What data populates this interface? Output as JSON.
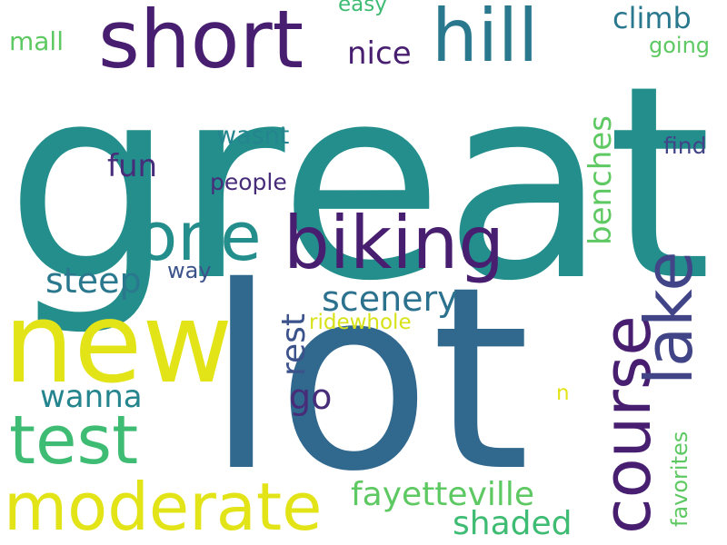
{
  "palette": {
    "dark_purple": "#481f70",
    "purple": "#472c7a",
    "blue": "#31688e",
    "teal": "#238e8c",
    "green": "#3fbc73",
    "light_green": "#5ec962",
    "yellow_green": "#addc30",
    "yellow": "#e3e418"
  },
  "words": [
    {
      "text": "great",
      "color": "#238e8c",
      "orientation": "horizontal"
    },
    {
      "text": "lot",
      "color": "#31688e",
      "orientation": "horizontal"
    },
    {
      "text": "new",
      "color": "#e3e418",
      "orientation": "horizontal"
    },
    {
      "text": "short",
      "color": "#481f70",
      "orientation": "horizontal"
    },
    {
      "text": "hill",
      "color": "#2a788e",
      "orientation": "horizontal"
    },
    {
      "text": "biking",
      "color": "#481f70",
      "orientation": "horizontal"
    },
    {
      "text": "one",
      "color": "#238e8c",
      "orientation": "horizontal"
    },
    {
      "text": "test",
      "color": "#3fbc73",
      "orientation": "horizontal"
    },
    {
      "text": "moderate",
      "color": "#e3e418",
      "orientation": "horizontal"
    },
    {
      "text": "course",
      "color": "#481f70",
      "orientation": "vertical"
    },
    {
      "text": "lake",
      "color": "#414487",
      "orientation": "vertical"
    },
    {
      "text": "climb",
      "color": "#2a788e",
      "orientation": "horizontal"
    },
    {
      "text": "mall",
      "color": "#5ec962",
      "orientation": "horizontal"
    },
    {
      "text": "easy",
      "color": "#3fbc73",
      "orientation": "horizontal"
    },
    {
      "text": "nice",
      "color": "#481f70",
      "orientation": "horizontal"
    },
    {
      "text": "going",
      "color": "#5ec962",
      "orientation": "horizontal"
    },
    {
      "text": "fun",
      "color": "#472c7a",
      "orientation": "horizontal"
    },
    {
      "text": "wasnt",
      "color": "#25858e",
      "orientation": "horizontal"
    },
    {
      "text": "benches",
      "color": "#5ec962",
      "orientation": "vertical"
    },
    {
      "text": "find",
      "color": "#414487",
      "orientation": "horizontal"
    },
    {
      "text": "people",
      "color": "#472c7a",
      "orientation": "horizontal"
    },
    {
      "text": "steep",
      "color": "#2a788e",
      "orientation": "horizontal"
    },
    {
      "text": "way",
      "color": "#3b528b",
      "orientation": "horizontal"
    },
    {
      "text": "scenery",
      "color": "#2c728e",
      "orientation": "horizontal"
    },
    {
      "text": "rest",
      "color": "#3b528b",
      "orientation": "vertical"
    },
    {
      "text": "ridewhole",
      "color": "#d8e219",
      "orientation": "horizontal"
    },
    {
      "text": "wanna",
      "color": "#25858e",
      "orientation": "horizontal"
    },
    {
      "text": "go",
      "color": "#472c7a",
      "orientation": "horizontal"
    },
    {
      "text": "n",
      "color": "#e3e418",
      "orientation": "horizontal"
    },
    {
      "text": "favorites",
      "color": "#5ec962",
      "orientation": "vertical"
    },
    {
      "text": "fayetteville",
      "color": "#5ec962",
      "orientation": "horizontal"
    },
    {
      "text": "shaded",
      "color": "#3fbc73",
      "orientation": "horizontal"
    }
  ]
}
